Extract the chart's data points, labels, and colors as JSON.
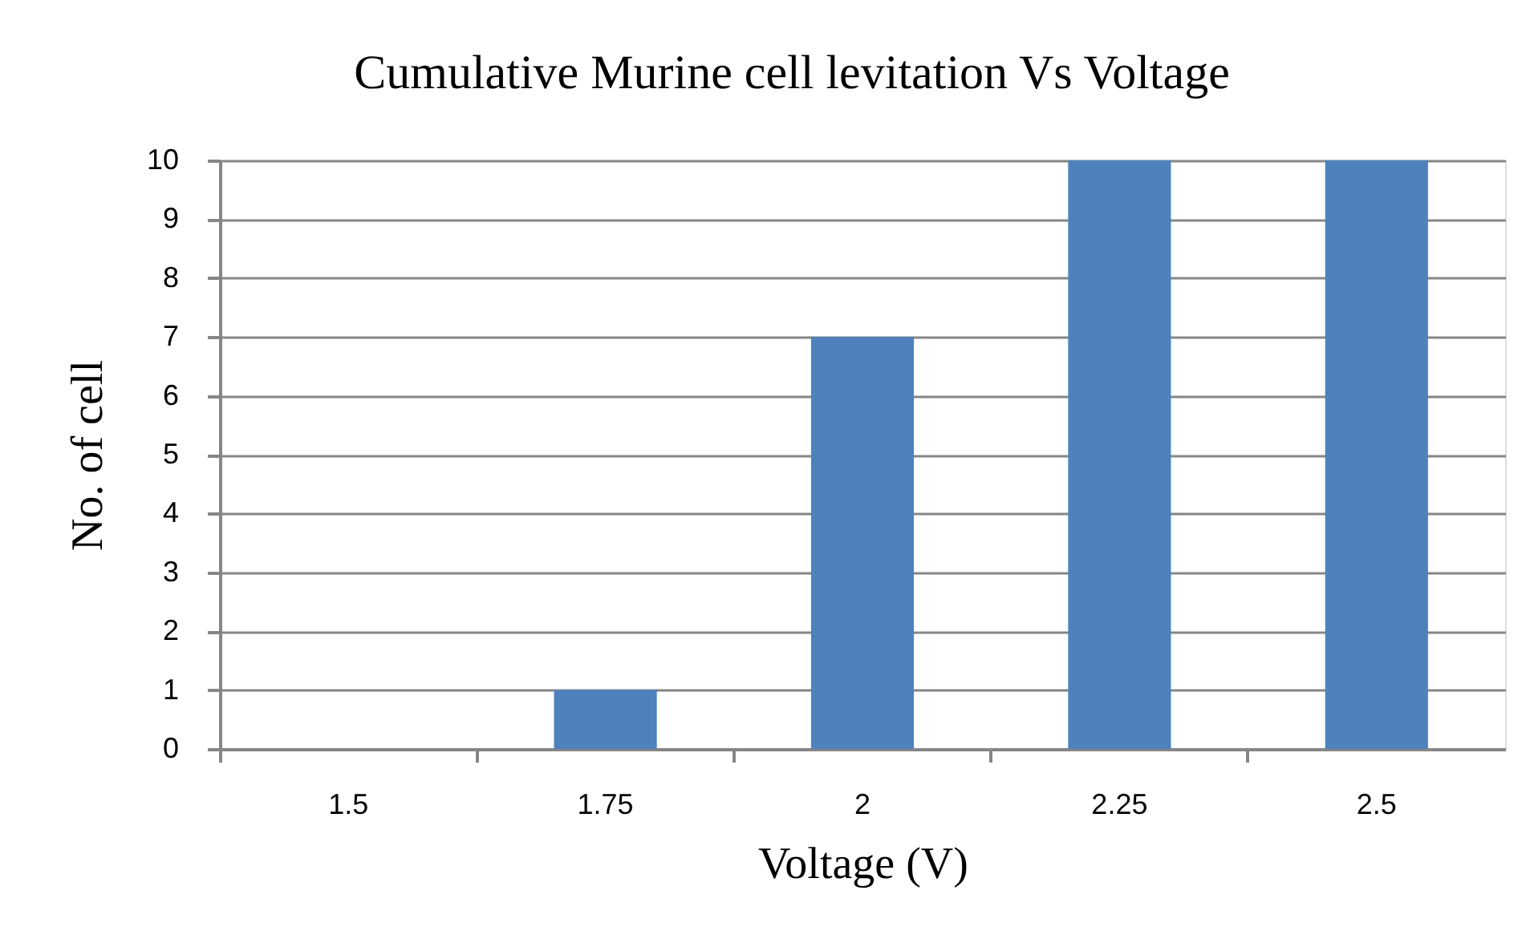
{
  "chart_data": {
    "type": "bar",
    "title": "Cumulative Murine cell levitation Vs Voltage",
    "xlabel": "Voltage (V)",
    "ylabel": "No. of cell",
    "categories": [
      "1.5",
      "1.75",
      "2",
      "2.25",
      "2.5"
    ],
    "values": [
      0,
      1,
      7,
      10,
      10
    ],
    "color": "#4f81bd",
    "ylim": [
      0,
      10
    ],
    "yticks": [
      0,
      1,
      2,
      3,
      4,
      5,
      6,
      7,
      8,
      9,
      10
    ],
    "grid": "y"
  }
}
